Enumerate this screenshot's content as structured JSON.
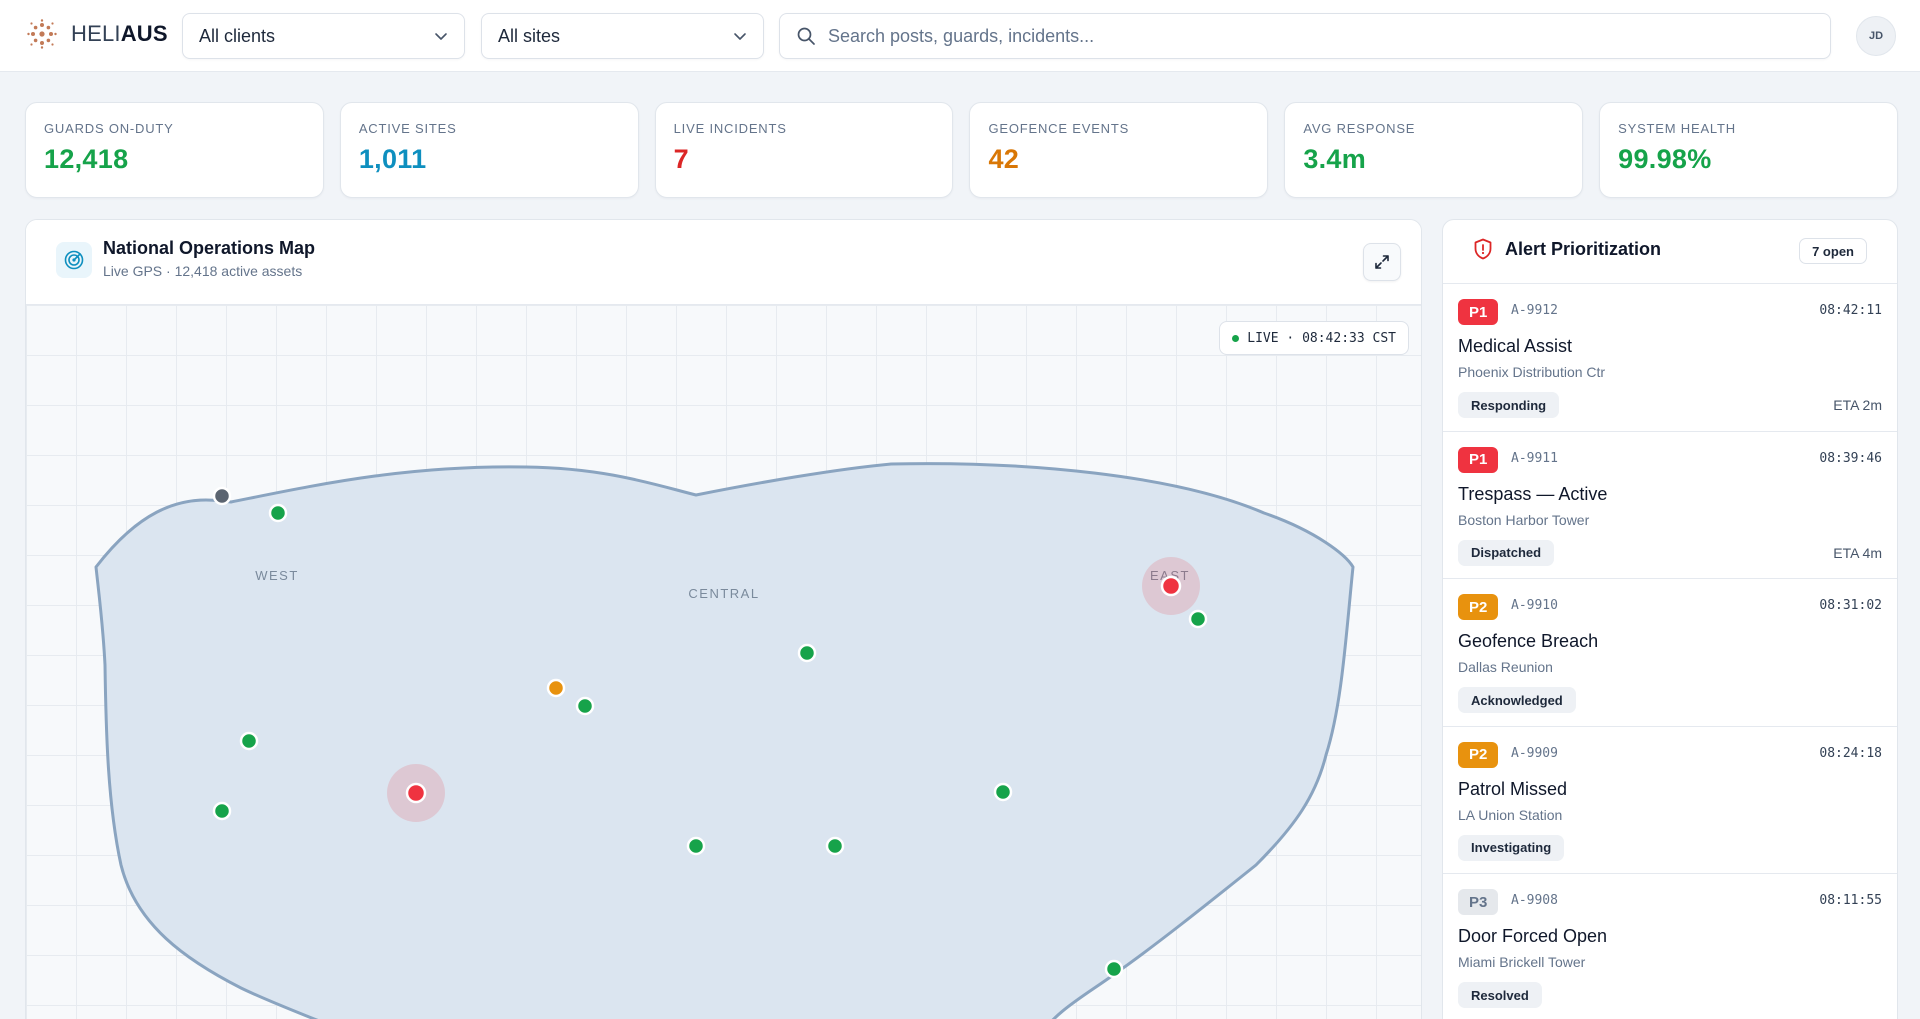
{
  "header": {
    "logo_light": "HELI",
    "logo_bold": "AUS",
    "client_select": "All clients",
    "site_select": "All sites",
    "search_placeholder": "Search posts, guards, incidents...",
    "avatar_initials": "JD"
  },
  "kpis": [
    {
      "label": "GUARDS ON-DUTY",
      "value": "12,418",
      "color": "#16a34a"
    },
    {
      "label": "ACTIVE SITES",
      "value": "1,011",
      "color": "#0e8fbf"
    },
    {
      "label": "LIVE INCIDENTS",
      "value": "7",
      "color": "#dc2626"
    },
    {
      "label": "GEOFENCE EVENTS",
      "value": "42",
      "color": "#d97706"
    },
    {
      "label": "AVG RESPONSE",
      "value": "3.4m",
      "color": "#16a34a"
    },
    {
      "label": "SYSTEM HEALTH",
      "value": "99.98%",
      "color": "#16a34a"
    }
  ],
  "map": {
    "title": "National Operations Map",
    "subtitle": "Live GPS · 12,418 active assets",
    "live_label": "LIVE · 08:42:33 CST",
    "regions": [
      "WEST",
      "CENTRAL",
      "EAST"
    ]
  },
  "alerts": {
    "title": "Alert Prioritization",
    "open_count": "7 open",
    "items": [
      {
        "priority": "P1",
        "id": "A-9912",
        "time": "08:42:11",
        "name": "Medical Assist",
        "location": "Phoenix Distribution Ctr",
        "status": "Responding",
        "eta": "ETA 2m"
      },
      {
        "priority": "P1",
        "id": "A-9911",
        "time": "08:39:46",
        "name": "Trespass — Active",
        "location": "Boston Harbor Tower",
        "status": "Dispatched",
        "eta": "ETA 4m"
      },
      {
        "priority": "P2",
        "id": "A-9910",
        "time": "08:31:02",
        "name": "Geofence Breach",
        "location": "Dallas Reunion",
        "status": "Acknowledged",
        "eta": ""
      },
      {
        "priority": "P2",
        "id": "A-9909",
        "time": "08:24:18",
        "name": "Patrol Missed",
        "location": "LA Union Station",
        "status": "Investigating",
        "eta": ""
      },
      {
        "priority": "P3",
        "id": "A-9908",
        "time": "08:11:55",
        "name": "Door Forced Open",
        "location": "Miami Brickell Tower",
        "status": "Resolved",
        "eta": ""
      }
    ]
  },
  "colors": {
    "p1": "#ef3340",
    "p2": "#e8920e",
    "p3": "#e5e8ec",
    "guard_ok": "#16a34a",
    "guard_warn": "#e8920e",
    "guard_incident": "#ef3340",
    "guard_offline": "#5b6470"
  }
}
